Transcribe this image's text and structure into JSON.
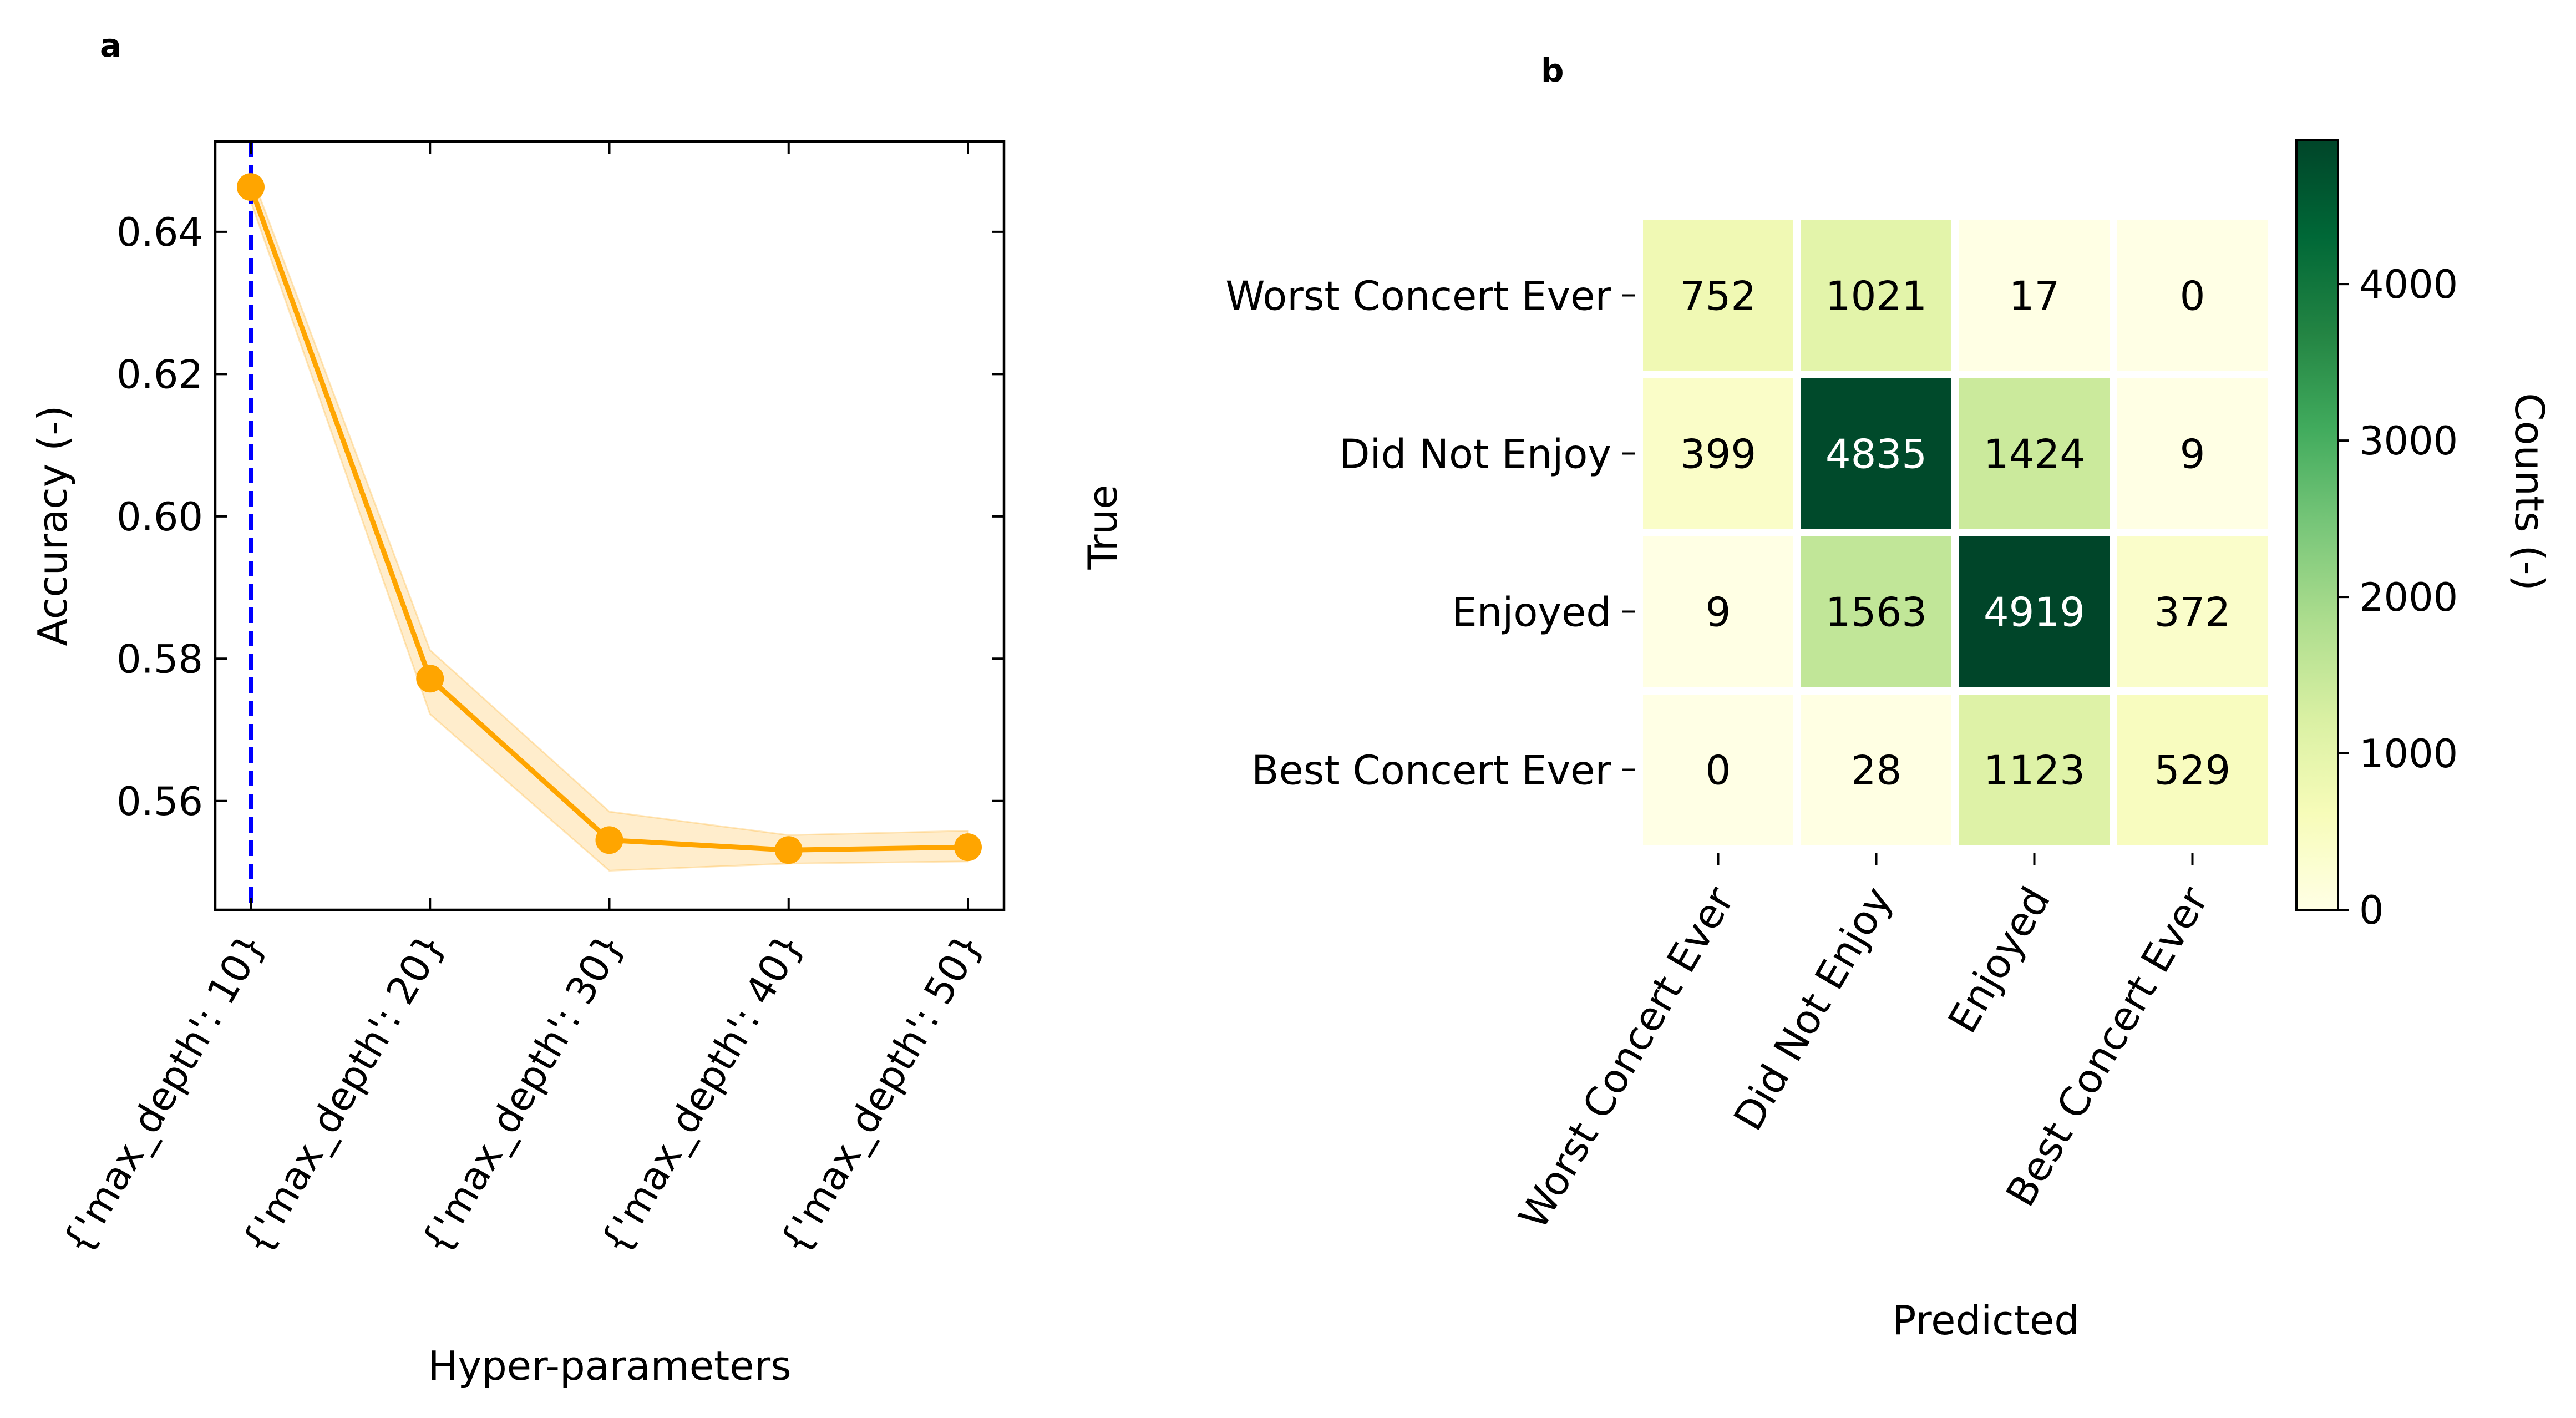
{
  "panels": {
    "a": {
      "label": "a"
    },
    "b": {
      "label": "b"
    }
  },
  "chart_data": [
    {
      "panel": "a",
      "type": "line",
      "xlabel": "Hyper-parameters",
      "ylabel": "Accuracy (-)",
      "categories": [
        "{'max_depth': 10}",
        "{'max_depth': 20}",
        "{'max_depth': 30}",
        "{'max_depth': 40}",
        "{'max_depth': 50}"
      ],
      "values": [
        0.6463,
        0.5772,
        0.5545,
        0.5531,
        0.5535
      ],
      "band": {
        "lower": [
          0.6443,
          0.5722,
          0.5502,
          0.5512,
          0.5515
        ],
        "upper": [
          0.6483,
          0.5812,
          0.5585,
          0.5552,
          0.5558
        ]
      },
      "ylim": [
        0.5447,
        0.6527
      ],
      "yticks": [
        0.56,
        0.58,
        0.6,
        0.62,
        0.64
      ],
      "ytick_labels": [
        "0.56",
        "0.58",
        "0.60",
        "0.62",
        "0.64"
      ],
      "best_index": 0,
      "colors": {
        "line": "#ffa500",
        "band": "#ffa500",
        "marker": "#0000ff"
      },
      "grid": false
    },
    {
      "panel": "b",
      "type": "heatmap",
      "xlabel": "Predicted",
      "ylabel": "True",
      "x_categories": [
        "Worst Concert Ever",
        "Did Not Enjoy",
        "Enjoyed",
        "Best Concert Ever"
      ],
      "y_categories": [
        "Worst Concert Ever",
        "Did Not Enjoy",
        "Enjoyed",
        "Best Concert Ever"
      ],
      "matrix": [
        [
          752,
          1021,
          17,
          0
        ],
        [
          399,
          4835,
          1424,
          9
        ],
        [
          9,
          1563,
          4919,
          372
        ],
        [
          0,
          28,
          1123,
          529
        ]
      ],
      "colorbar": {
        "label": "Counts (-)",
        "min": 0,
        "max": 4919,
        "ticks": [
          0,
          1000,
          2000,
          3000,
          4000
        ],
        "tick_labels": [
          "0",
          "1000",
          "2000",
          "3000",
          "4000"
        ],
        "colormap": "Greens",
        "colors": [
          "#ffffe5",
          "#f7fcb9",
          "#d9f0a3",
          "#addd8e",
          "#78c679",
          "#41ab5d",
          "#238443",
          "#006837",
          "#004529"
        ]
      }
    }
  ]
}
